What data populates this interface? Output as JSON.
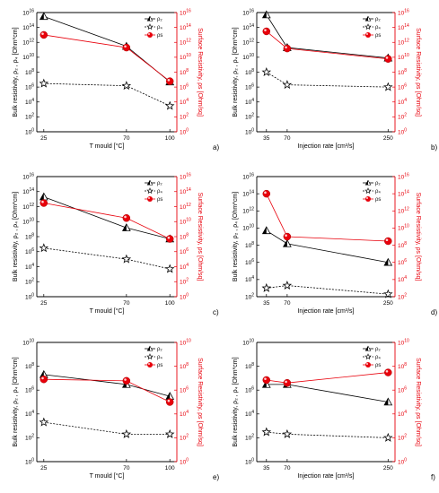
{
  "figure": {
    "left_ylabel": "Bulk resistivity, ρ₂ , ρ₄ [Ohm*cm]",
    "right_ylabel": "Surface Resistivity, ρs [Ohm/sq]",
    "legend": [
      "ρ₂",
      "ρ₄",
      "ρs"
    ]
  },
  "colors": {
    "bulk": "#000000",
    "surface": "#e8000b",
    "ball": "#e8000b"
  },
  "chart_data": [
    {
      "type": "line",
      "panel_label": "a)",
      "xlabel": "T mould [°C]",
      "x": [
        25,
        70,
        100
      ],
      "x_ticks": [
        "25",
        "70",
        "100"
      ],
      "ylim_log10": [
        0,
        16
      ],
      "y_tick_exponents": [
        0,
        2,
        4,
        6,
        8,
        10,
        12,
        14,
        16
      ],
      "series": [
        {
          "name": "ρ₂",
          "marker": "triangle",
          "values": [
            3000000000000000.0,
            300000000000.0,
            5000000.0
          ]
        },
        {
          "name": "ρ₄",
          "marker": "star",
          "values": [
            3000000.0,
            1500000.0,
            3000.0
          ]
        },
        {
          "name": "ρs",
          "marker": "ball",
          "values": [
            10000000000000.0,
            200000000000.0,
            6000000.0
          ]
        }
      ]
    },
    {
      "type": "line",
      "panel_label": "b)",
      "xlabel": "Injection rate [cm³/s]",
      "x": [
        35,
        70,
        250
      ],
      "x_ticks": [
        "35",
        "70",
        "250"
      ],
      "ylim_log10": [
        0,
        16
      ],
      "y_tick_exponents": [
        0,
        2,
        4,
        6,
        8,
        10,
        12,
        14,
        16
      ],
      "series": [
        {
          "name": "ρ₂",
          "marker": "triangle",
          "values": [
            5000000000000000.0,
            200000000000.0,
            8000000000.0
          ]
        },
        {
          "name": "ρ₄",
          "marker": "star",
          "values": [
            100000000.0,
            2000000.0,
            1000000.0
          ]
        },
        {
          "name": "ρs",
          "marker": "ball",
          "values": [
            30000000000000.0,
            150000000000.0,
            6000000000.0
          ]
        }
      ]
    },
    {
      "type": "line",
      "panel_label": "c)",
      "xlabel": "T mould [°C]",
      "x": [
        25,
        70,
        100
      ],
      "x_ticks": [
        "25",
        "70",
        "100"
      ],
      "ylim_log10": [
        0,
        16
      ],
      "y_tick_exponents": [
        0,
        2,
        4,
        6,
        8,
        10,
        12,
        14,
        16
      ],
      "series": [
        {
          "name": "ρ₂",
          "marker": "triangle",
          "values": [
            20000000000000.0,
            1500000000.0,
            50000000.0
          ]
        },
        {
          "name": "ρ₄",
          "marker": "star",
          "values": [
            3000000.0,
            100000.0,
            5000.0
          ]
        },
        {
          "name": "ρs",
          "marker": "ball",
          "values": [
            3000000000000.0,
            30000000000.0,
            50000000.0
          ]
        }
      ]
    },
    {
      "type": "line",
      "panel_label": "d)",
      "xlabel": "Injection rate [cm³/s]",
      "x": [
        35,
        70,
        250
      ],
      "x_ticks": [
        "35",
        "70",
        "250"
      ],
      "ylim_log10": [
        2,
        16
      ],
      "y_tick_exponents": [
        2,
        4,
        6,
        8,
        10,
        12,
        14,
        16
      ],
      "series": [
        {
          "name": "ρ₂",
          "marker": "triangle",
          "values": [
            5000000000.0,
            150000000.0,
            1000000.0
          ]
        },
        {
          "name": "ρ₄",
          "marker": "star",
          "values": [
            1000.0,
            2000.0,
            200.0
          ]
        },
        {
          "name": "ρs",
          "marker": "ball",
          "values": [
            100000000000000.0,
            1000000000.0,
            300000000.0
          ]
        }
      ]
    },
    {
      "type": "line",
      "panel_label": "e)",
      "xlabel": "T mould [°C]",
      "x": [
        25,
        70,
        100
      ],
      "x_ticks": [
        "25",
        "70",
        "100"
      ],
      "ylim_log10": [
        0,
        10
      ],
      "y_tick_exponents": [
        0,
        2,
        4,
        6,
        8,
        10
      ],
      "series": [
        {
          "name": "ρ₂",
          "marker": "triangle",
          "values": [
            20000000.0,
            3000000.0,
            300000.0
          ]
        },
        {
          "name": "ρ₄",
          "marker": "star",
          "values": [
            2000.0,
            200.0,
            200.0
          ]
        },
        {
          "name": "ρs",
          "marker": "ball",
          "values": [
            8000000.0,
            6000000.0,
            100000.0
          ]
        }
      ]
    },
    {
      "type": "line",
      "panel_label": "f)",
      "xlabel": "Injection rate [cm³/s]",
      "x": [
        35,
        70,
        250
      ],
      "x_ticks": [
        "35",
        "70",
        "250"
      ],
      "ylim_log10": [
        0,
        10
      ],
      "y_tick_exponents": [
        0,
        2,
        4,
        6,
        8,
        10
      ],
      "series": [
        {
          "name": "ρ₂",
          "marker": "triangle",
          "values": [
            3000000.0,
            3000000.0,
            100000.0
          ]
        },
        {
          "name": "ρ₄",
          "marker": "star",
          "values": [
            300.0,
            200.0,
            100.0
          ]
        },
        {
          "name": "ρs",
          "marker": "ball",
          "values": [
            7000000.0,
            4000000.0,
            30000000.0
          ]
        }
      ]
    }
  ]
}
